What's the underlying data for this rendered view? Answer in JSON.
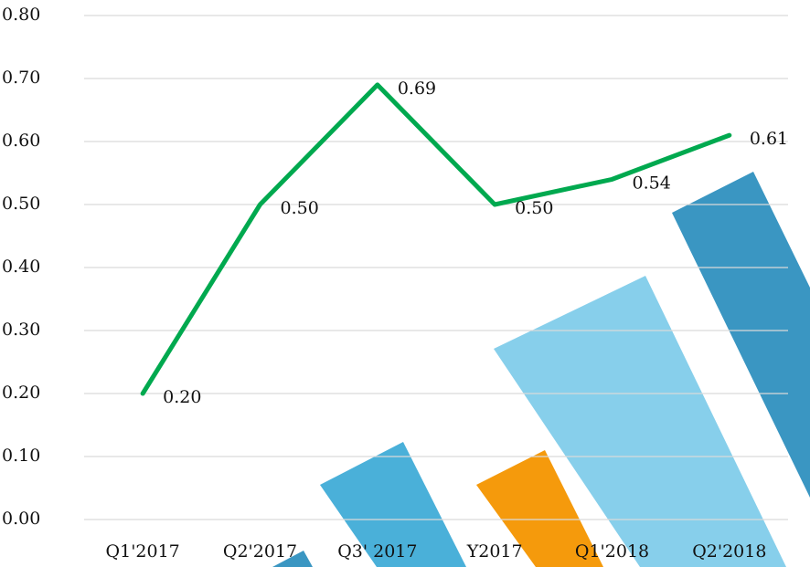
{
  "chart_data": {
    "type": "line",
    "categories": [
      "Q1'2017",
      "Q2'2017",
      "Q3' 2017",
      "Y2017",
      "Q1'2018",
      "Q2'2018"
    ],
    "series": [
      {
        "color": "#00a94f",
        "values": [
          0.2,
          0.5,
          0.69,
          0.5,
          0.54,
          0.61
        ],
        "value_labels": [
          "0.20",
          "0.50",
          "0.69",
          "0.50",
          "0.54",
          "0.61"
        ]
      }
    ],
    "ylim": [
      0,
      0.8
    ],
    "yticks": [
      {
        "value": 0,
        "label": "0.00"
      },
      {
        "value": 0.1,
        "label": "0.10"
      },
      {
        "value": 0.2,
        "label": "0.20"
      },
      {
        "value": 0.3,
        "label": "0.30"
      },
      {
        "value": 0.4,
        "label": "0.40"
      },
      {
        "value": 0.5,
        "label": "0.50"
      },
      {
        "value": 0.6,
        "label": "0.60"
      },
      {
        "value": 0.7,
        "label": "0.70"
      },
      {
        "value": 0.8,
        "label": "0.80"
      }
    ],
    "grid": true
  }
}
